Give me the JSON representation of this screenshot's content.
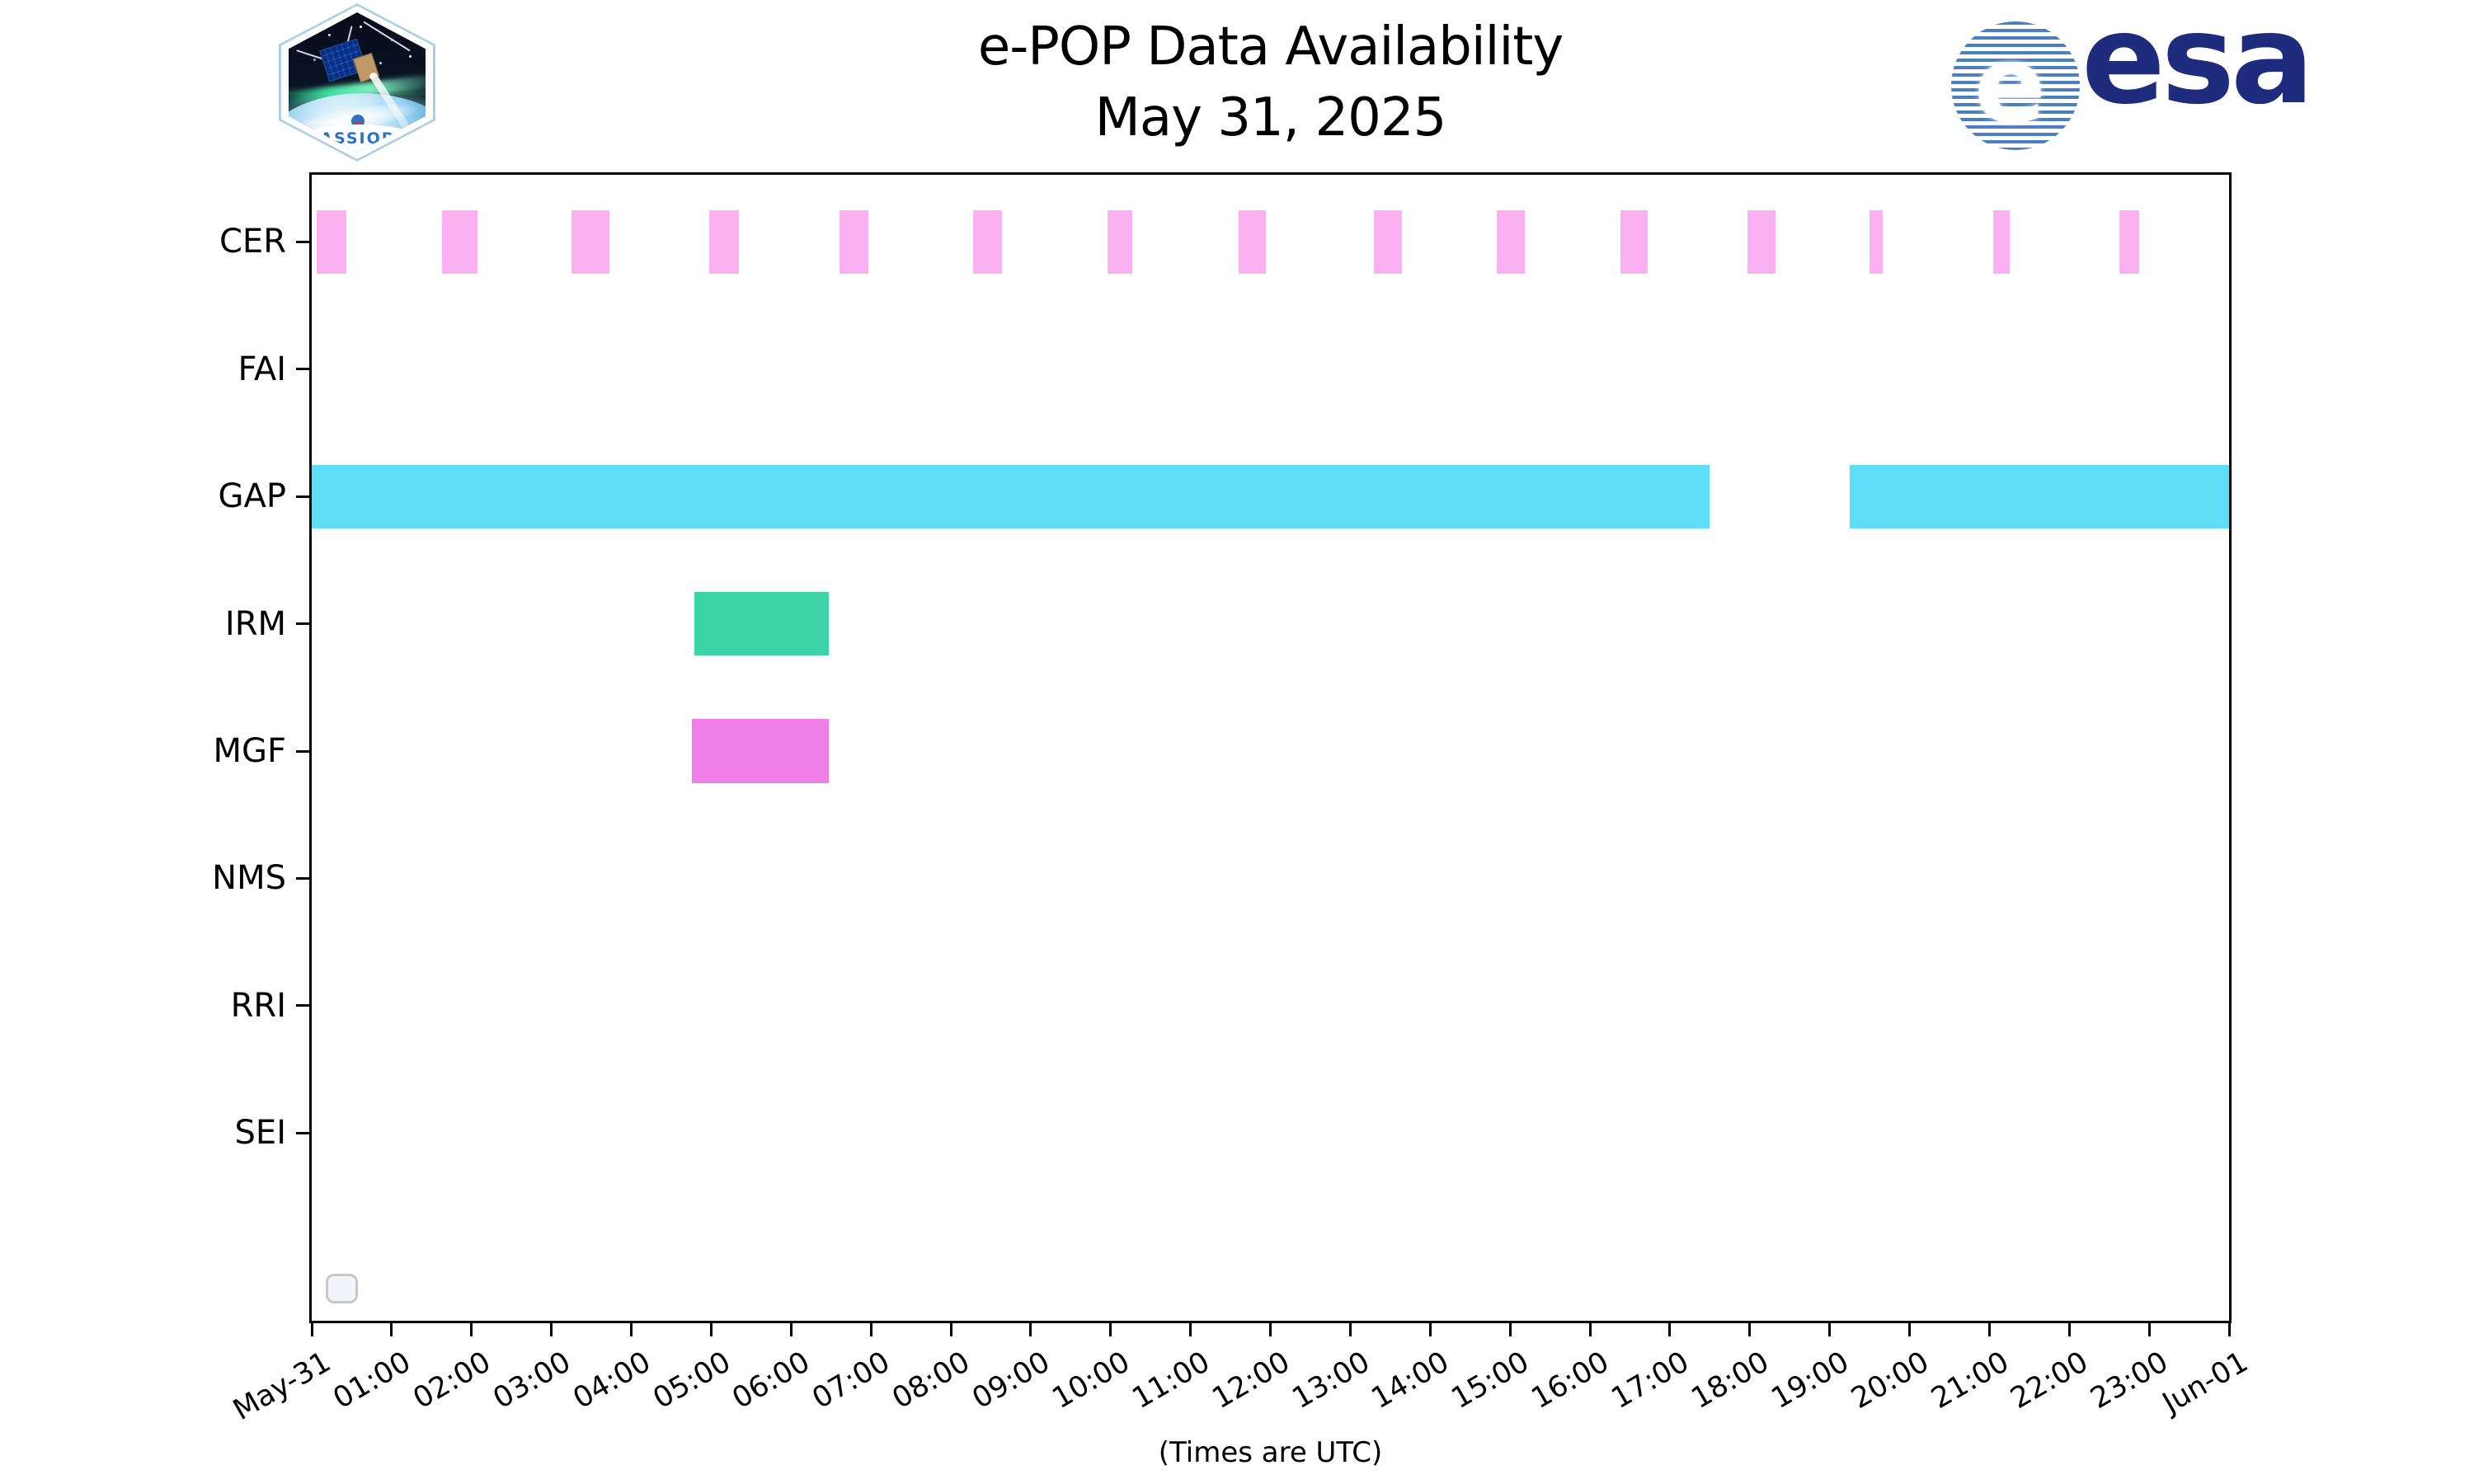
{
  "title": {
    "line1": "e-POP Data Availability",
    "line2": "May 31, 2025"
  },
  "branding": {
    "cassiope_patch_label": "CASSIOPE",
    "esa_wordmark": "esa",
    "esa_globe_letter": "e",
    "esa_navy": "#1f2b7d",
    "esa_globe_blue": "#4b80c0",
    "cassiope_text_blue": "#2a72c4"
  },
  "chart_data": {
    "type": "timeline",
    "title": "e-POP Data Availability May 31, 2025",
    "xlabel": "(Times are UTC)",
    "x_range_hours": [
      0,
      24
    ],
    "x_tick_labels": [
      "May-31",
      "01:00",
      "02:00",
      "03:00",
      "04:00",
      "05:00",
      "06:00",
      "07:00",
      "08:00",
      "09:00",
      "10:00",
      "11:00",
      "12:00",
      "13:00",
      "14:00",
      "15:00",
      "16:00",
      "17:00",
      "18:00",
      "19:00",
      "20:00",
      "21:00",
      "22:00",
      "23:00",
      "Jun-01"
    ],
    "row_labels": [
      "CER",
      "FAI",
      "GAP",
      "IRM",
      "MGF",
      "NMS",
      "RRI",
      "SEI"
    ],
    "row_slots": 9,
    "grid": false,
    "legend_placeholder": true,
    "series": [
      {
        "name": "CER",
        "color": "#fbb1f1",
        "intervals": [
          [
            0.06,
            0.43
          ],
          [
            1.63,
            2.08
          ],
          [
            3.25,
            3.73
          ],
          [
            4.97,
            5.35
          ],
          [
            6.61,
            6.97
          ],
          [
            8.28,
            8.64
          ],
          [
            9.96,
            10.27
          ],
          [
            11.6,
            11.94
          ],
          [
            13.3,
            13.65
          ],
          [
            14.83,
            15.18
          ],
          [
            16.38,
            16.72
          ],
          [
            17.97,
            18.32
          ],
          [
            19.5,
            19.66
          ],
          [
            21.05,
            21.25
          ],
          [
            22.63,
            22.87
          ]
        ]
      },
      {
        "name": "FAI",
        "color": null,
        "intervals": []
      },
      {
        "name": "GAP",
        "color": "#5fddf7",
        "intervals": [
          [
            0.0,
            17.5
          ],
          [
            19.25,
            24.0
          ]
        ]
      },
      {
        "name": "IRM",
        "color": "#3cd3a5",
        "intervals": [
          [
            4.79,
            6.47
          ]
        ]
      },
      {
        "name": "MGF",
        "color": "#f07ee9",
        "intervals": [
          [
            4.76,
            6.47
          ]
        ]
      },
      {
        "name": "NMS",
        "color": null,
        "intervals": []
      },
      {
        "name": "RRI",
        "color": null,
        "intervals": []
      },
      {
        "name": "SEI",
        "color": null,
        "intervals": []
      }
    ]
  }
}
